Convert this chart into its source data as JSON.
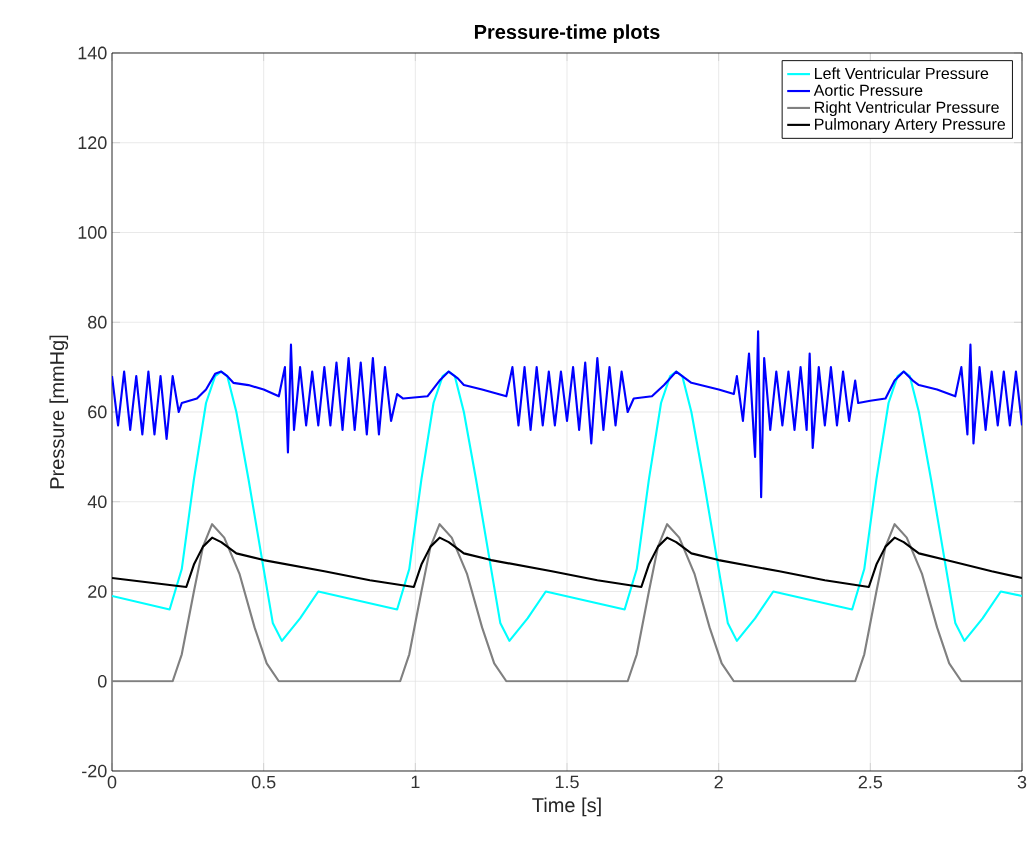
{
  "chart_data": {
    "type": "line",
    "title": "Pressure-time plots",
    "xlabel": "Time [s]",
    "ylabel": "Pressure [mmHg]",
    "xlim": [
      0,
      3
    ],
    "ylim": [
      -20,
      140
    ],
    "xticks": [
      0,
      0.5,
      1,
      1.5,
      2,
      2.5,
      3
    ],
    "yticks": [
      -20,
      0,
      20,
      40,
      60,
      80,
      100,
      120,
      140
    ],
    "grid": true,
    "legend": "top right",
    "series": [
      {
        "name": "Left Ventricular Pressure",
        "color": "#00ffff",
        "x": [
          0,
          0.19,
          0.23,
          0.27,
          0.31,
          0.34,
          0.36,
          0.38,
          0.41,
          0.45,
          0.5,
          0.53,
          0.56,
          0.62,
          0.68,
          0.94,
          0.98,
          1.02,
          1.06,
          1.09,
          1.11,
          1.13,
          1.16,
          1.2,
          1.25,
          1.28,
          1.31,
          1.37,
          1.43,
          1.69,
          1.73,
          1.77,
          1.81,
          1.84,
          1.86,
          1.88,
          1.91,
          1.95,
          2.0,
          2.03,
          2.06,
          2.12,
          2.18,
          2.44,
          2.48,
          2.52,
          2.56,
          2.59,
          2.61,
          2.63,
          2.66,
          2.7,
          2.75,
          2.78,
          2.81,
          2.87,
          2.93,
          3.0
        ],
        "values": [
          19,
          16,
          25,
          45,
          62,
          68,
          69,
          68,
          60,
          45,
          25,
          13,
          9,
          14,
          20,
          16,
          25,
          45,
          62,
          68,
          69,
          68,
          60,
          45,
          25,
          13,
          9,
          14,
          20,
          16,
          25,
          45,
          62,
          68,
          69,
          68,
          60,
          45,
          25,
          13,
          9,
          14,
          20,
          16,
          25,
          45,
          62,
          68,
          69,
          68,
          60,
          45,
          25,
          13,
          9,
          14,
          20,
          19
        ]
      },
      {
        "name": "Aortic Pressure",
        "color": "#0000ff",
        "x": [
          0,
          0.02,
          0.04,
          0.06,
          0.08,
          0.1,
          0.12,
          0.14,
          0.16,
          0.18,
          0.2,
          0.22,
          0.23,
          0.28,
          0.31,
          0.34,
          0.36,
          0.38,
          0.4,
          0.45,
          0.5,
          0.55,
          0.57,
          0.58,
          0.59,
          0.6,
          0.62,
          0.64,
          0.66,
          0.68,
          0.7,
          0.72,
          0.74,
          0.76,
          0.78,
          0.8,
          0.82,
          0.84,
          0.86,
          0.88,
          0.9,
          0.92,
          0.94,
          0.96,
          1.04,
          1.08,
          1.11,
          1.14,
          1.16,
          1.22,
          1.3,
          1.32,
          1.34,
          1.36,
          1.38,
          1.4,
          1.42,
          1.44,
          1.46,
          1.48,
          1.5,
          1.52,
          1.54,
          1.56,
          1.58,
          1.6,
          1.62,
          1.64,
          1.66,
          1.68,
          1.7,
          1.72,
          1.78,
          1.82,
          1.86,
          1.89,
          1.91,
          2.0,
          2.05,
          2.06,
          2.08,
          2.1,
          2.12,
          2.13,
          2.14,
          2.15,
          2.17,
          2.19,
          2.21,
          2.23,
          2.25,
          2.27,
          2.29,
          2.3,
          2.31,
          2.33,
          2.35,
          2.37,
          2.39,
          2.41,
          2.43,
          2.45,
          2.46,
          2.5,
          2.55,
          2.58,
          2.61,
          2.64,
          2.66,
          2.72,
          2.78,
          2.8,
          2.82,
          2.83,
          2.84,
          2.86,
          2.88,
          2.9,
          2.92,
          2.94,
          2.96,
          2.98,
          3.0
        ],
        "values": [
          68,
          57,
          69,
          56,
          68,
          55,
          69,
          55,
          68,
          54,
          68,
          60,
          62,
          63,
          65,
          68.5,
          69,
          68,
          66.5,
          66,
          65,
          63.5,
          70,
          51,
          75,
          56,
          70,
          57,
          69,
          57,
          70,
          57,
          71,
          56,
          72,
          56,
          71,
          55,
          72,
          55,
          70,
          58,
          64,
          63,
          63.5,
          67,
          69,
          67.5,
          66,
          65,
          63.5,
          70,
          57,
          70,
          56,
          70,
          57,
          69,
          57,
          69,
          58,
          70,
          56,
          71,
          53,
          72,
          56,
          70,
          57,
          69,
          60,
          63,
          63.5,
          66,
          69,
          67.5,
          66.5,
          65,
          64,
          68,
          58,
          73,
          50,
          78,
          41,
          72,
          56,
          69,
          57,
          69,
          56,
          70,
          56,
          73,
          52,
          70,
          57,
          70,
          57,
          69,
          58,
          67,
          62,
          62.5,
          63,
          67,
          69,
          67,
          66,
          65,
          63.5,
          70,
          55,
          75,
          53,
          70,
          56,
          69,
          57,
          69,
          57,
          69,
          57
        ]
      },
      {
        "name": "Right Ventricular Pressure",
        "color": "#808080",
        "x": [
          0,
          0.2,
          0.23,
          0.27,
          0.3,
          0.33,
          0.37,
          0.42,
          0.47,
          0.51,
          0.55,
          0.95,
          0.98,
          1.02,
          1.05,
          1.08,
          1.12,
          1.17,
          1.22,
          1.26,
          1.3,
          1.7,
          1.73,
          1.77,
          1.8,
          1.83,
          1.87,
          1.92,
          1.97,
          2.01,
          2.05,
          2.45,
          2.48,
          2.52,
          2.55,
          2.58,
          2.62,
          2.67,
          2.72,
          2.76,
          2.8,
          3.0
        ],
        "values": [
          0,
          0,
          6,
          20,
          30,
          35,
          32,
          24,
          12,
          4,
          0,
          0,
          6,
          20,
          30,
          35,
          32,
          24,
          12,
          4,
          0,
          0,
          6,
          20,
          30,
          35,
          32,
          24,
          12,
          4,
          0,
          0,
          6,
          20,
          30,
          35,
          32,
          24,
          12,
          4,
          0,
          0
        ]
      },
      {
        "name": "Pulmonary Artery Pressure",
        "color": "#000000",
        "x": [
          0,
          0.245,
          0.27,
          0.3,
          0.33,
          0.36,
          0.41,
          0.5,
          0.7,
          0.85,
          0.995,
          1.02,
          1.05,
          1.08,
          1.11,
          1.16,
          1.25,
          1.45,
          1.6,
          1.745,
          1.77,
          1.8,
          1.83,
          1.86,
          1.91,
          2.0,
          2.2,
          2.35,
          2.495,
          2.52,
          2.55,
          2.58,
          2.61,
          2.66,
          2.75,
          2.9,
          3.0
        ],
        "values": [
          23,
          21,
          26,
          30,
          32,
          31,
          28.5,
          27,
          24.5,
          22.5,
          21,
          26,
          30,
          32,
          31,
          28.5,
          27,
          24.5,
          22.5,
          21,
          26,
          30,
          32,
          31,
          28.5,
          27,
          24.5,
          22.5,
          21,
          26,
          30,
          32,
          31,
          28.5,
          27,
          24.5,
          23
        ]
      }
    ]
  }
}
